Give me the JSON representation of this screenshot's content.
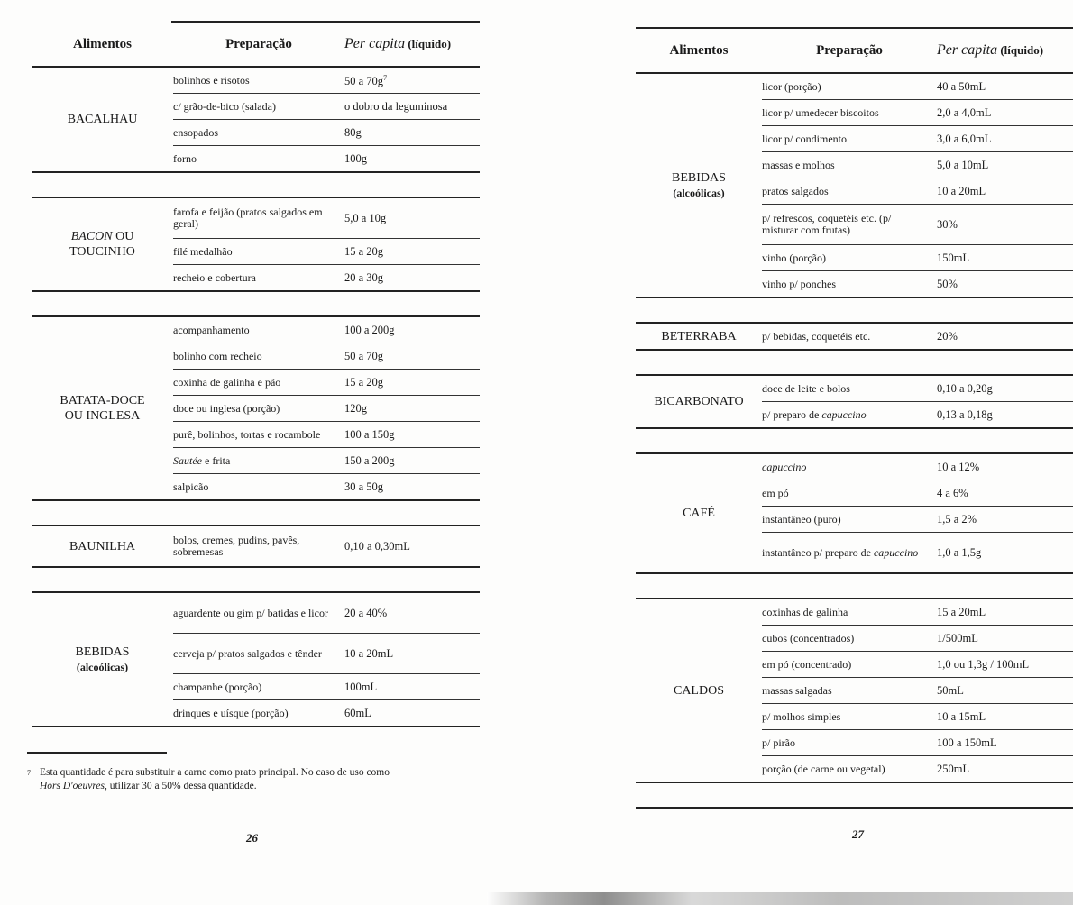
{
  "headers": {
    "alimentos": "Alimentos",
    "preparacao": "Preparação",
    "per_capita_italic": "Per capita",
    "per_capita_rest": "(líquido)"
  },
  "left_page": {
    "groups": [
      {
        "label": [
          "BACALHAU"
        ],
        "rows": [
          {
            "prep": "bolinhos e risotos",
            "pc": "50 a 70g",
            "sup": "7"
          },
          {
            "prep": "c/ grão-de-bico (salada)",
            "pc": "o dobro da leguminosa"
          },
          {
            "prep": "ensopados",
            "pc": "80g"
          },
          {
            "prep": "forno",
            "pc": "100g"
          }
        ]
      },
      {
        "label": [
          "BACON OU",
          "TOUCINHO"
        ],
        "label_italic": "BACON",
        "rows": [
          {
            "prep": "farofa e feijão (pratos salgados em geral)",
            "pc": "5,0 a 10g",
            "two": true
          },
          {
            "prep": "filé medalhão",
            "pc": "15 a 20g"
          },
          {
            "prep": "recheio e cobertura",
            "pc": "20 a 30g"
          }
        ]
      },
      {
        "label": [
          "BATATA-DOCE",
          "OU INGLESA"
        ],
        "rows": [
          {
            "prep": "acompanhamento",
            "pc": "100 a 200g"
          },
          {
            "prep": "bolinho com recheio",
            "pc": "50 a 70g"
          },
          {
            "prep": "coxinha de galinha e pão",
            "pc": "15 a 20g"
          },
          {
            "prep": "doce ou inglesa (porção)",
            "pc": "120g"
          },
          {
            "prep": "purê, bolinhos, tortas e rocambole",
            "pc": "100 a 150g"
          },
          {
            "prep": "Sautée e frita",
            "pc": "150 a 200g",
            "italic": "Sautée"
          },
          {
            "prep": "salpicão",
            "pc": "30 a 50g"
          }
        ]
      },
      {
        "label": [
          "BAUNILHA"
        ],
        "rows": [
          {
            "prep": "bolos, cremes, pudins, pavês, sobremesas",
            "pc": "0,10 a 0,30mL",
            "two": true
          }
        ]
      },
      {
        "label": [
          "BEBIDAS"
        ],
        "sub": "(alcoólicas)",
        "rows": [
          {
            "prep": "aguardente ou gim p/ batidas e licor",
            "pc": "20 a 40%",
            "two": true
          },
          {
            "prep": "cerveja p/ pratos salgados e tênder",
            "pc": "10 a 20mL",
            "two": true
          },
          {
            "prep": "champanhe (porção)",
            "pc": "100mL"
          },
          {
            "prep": "drinques e uísque (porção)",
            "pc": "60mL"
          }
        ]
      }
    ],
    "footnote": {
      "mark": "7",
      "line1": "Esta quantidade é para substituir a carne como prato principal. No caso de uso como",
      "line2_italic": "Hors D'oeuvres",
      "line2_rest": ", utilizar 30 a 50% dessa quantidade."
    },
    "page_number": "26"
  },
  "right_page": {
    "groups": [
      {
        "label": [
          "BEBIDAS"
        ],
        "sub": "(alcoólicas)",
        "rows": [
          {
            "prep": "licor (porção)",
            "pc": "40 a 50mL"
          },
          {
            "prep": "licor p/ umedecer biscoitos",
            "pc": "2,0 a 4,0mL"
          },
          {
            "prep": "licor p/ condimento",
            "pc": "3,0 a 6,0mL"
          },
          {
            "prep": "massas e molhos",
            "pc": "5,0 a 10mL"
          },
          {
            "prep": "pratos salgados",
            "pc": "10 a 20mL"
          },
          {
            "prep": "p/ refrescos, coquetéis etc. (p/ misturar com frutas)",
            "pc": "30%",
            "two": true
          },
          {
            "prep": "vinho (porção)",
            "pc": "150mL"
          },
          {
            "prep": "vinho p/ ponches",
            "pc": "50%"
          }
        ]
      },
      {
        "label": [
          "BETERRABA"
        ],
        "rows": [
          {
            "prep": "p/ bebidas, coquetéis etc.",
            "pc": "20%"
          }
        ]
      },
      {
        "label": [
          "BICARBONATO"
        ],
        "rows": [
          {
            "prep": "doce de leite e bolos",
            "pc": "0,10 a 0,20g"
          },
          {
            "prep": "p/ preparo de capuccino",
            "pc": "0,13 a 0,18g",
            "italic": "capuccino"
          }
        ]
      },
      {
        "label": [
          "CAFÉ"
        ],
        "rows": [
          {
            "prep": "capuccino",
            "pc": "10 a 12%",
            "italic": "capuccino"
          },
          {
            "prep": "em pó",
            "pc": "4 a 6%"
          },
          {
            "prep": "instantâneo (puro)",
            "pc": "1,5 a 2%"
          },
          {
            "prep": "instantâneo p/ preparo de capuccino",
            "pc": "1,0 a 1,5g",
            "italic": "capuccino",
            "two": true
          }
        ]
      },
      {
        "label": [
          "CALDOS"
        ],
        "rows": [
          {
            "prep": "coxinhas de galinha",
            "pc": "15 a 20mL"
          },
          {
            "prep": "cubos (concentrados)",
            "pc": "1/500mL"
          },
          {
            "prep": "em pó (concentrado)",
            "pc": "1,0 ou 1,3g / 100mL"
          },
          {
            "prep": "massas salgadas",
            "pc": "50mL"
          },
          {
            "prep": "p/ molhos simples",
            "pc": "10 a 15mL"
          },
          {
            "prep": "p/ pirão",
            "pc": "100 a 150mL"
          },
          {
            "prep": "porção (de carne ou vegetal)",
            "pc": "250mL"
          }
        ]
      },
      {
        "label": [
          ""
        ],
        "rows": [],
        "empty": true
      }
    ],
    "page_number": "27"
  }
}
